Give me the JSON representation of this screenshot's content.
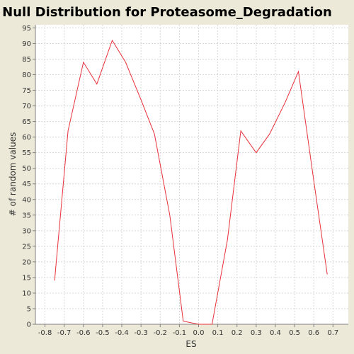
{
  "colors": {
    "background": "#ECE9D8",
    "plot_background": "#FFFFFF",
    "grid": "#D8D8D8",
    "axis": "#808080",
    "series": "#E8303A"
  },
  "chart_data": {
    "type": "line",
    "title": "Null Distribution for Proteasome_Degradation",
    "xlabel": "ES",
    "ylabel": "# of random values",
    "xlim": [
      -0.85,
      0.78
    ],
    "ylim": [
      0,
      96
    ],
    "xticks": [
      "-0.8",
      "-0.7",
      "-0.6",
      "-0.5",
      "-0.4",
      "-0.3",
      "-0.2",
      "-0.1",
      "0.0",
      "0.1",
      "0.2",
      "0.3",
      "0.4",
      "0.5",
      "0.6",
      "0.7"
    ],
    "yticks": [
      "0",
      "5",
      "10",
      "15",
      "20",
      "25",
      "30",
      "35",
      "40",
      "45",
      "50",
      "55",
      "60",
      "65",
      "70",
      "75",
      "80",
      "85",
      "90",
      "95"
    ],
    "grid": true,
    "series": [
      {
        "x": [
          -0.75,
          -0.68,
          -0.6,
          -0.53,
          -0.45,
          -0.38,
          -0.3,
          -0.23,
          -0.15,
          -0.08,
          0.0,
          0.07,
          0.15,
          0.22,
          0.3,
          0.37,
          0.45,
          0.52,
          0.6,
          0.67
        ],
        "y": [
          14,
          62,
          84,
          77,
          91,
          84,
          72,
          61,
          35,
          1,
          0,
          0,
          27,
          62,
          55,
          61,
          71,
          81,
          46,
          16
        ]
      }
    ]
  }
}
